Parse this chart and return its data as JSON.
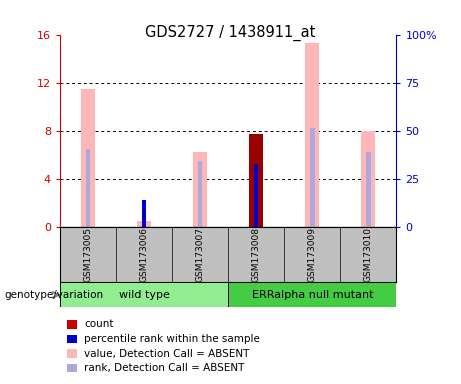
{
  "title": "GDS2727 / 1438911_at",
  "samples": [
    "GSM173005",
    "GSM173006",
    "GSM173007",
    "GSM173008",
    "GSM173009",
    "GSM173010"
  ],
  "pink_values": [
    11.5,
    0.5,
    6.2,
    0.0,
    15.3,
    8.0
  ],
  "blue_rank_values": [
    6.5,
    0.0,
    5.5,
    0.0,
    8.2,
    6.2
  ],
  "dark_red_values": [
    0.0,
    0.0,
    0.0,
    7.7,
    0.0,
    0.0
  ],
  "blue_dot_values": [
    0.0,
    2.2,
    0.0,
    5.2,
    0.0,
    0.0
  ],
  "ylim_left": [
    0,
    16
  ],
  "ylim_right": [
    0,
    100
  ],
  "yticks_left": [
    0,
    4,
    8,
    12,
    16
  ],
  "ytick_labels_left": [
    "0",
    "4",
    "8",
    "12",
    "16"
  ],
  "yticks_right": [
    0,
    25,
    50,
    75,
    100
  ],
  "ytick_labels_right": [
    "0",
    "25",
    "50",
    "75",
    "100%"
  ],
  "left_tick_color": "#CC0000",
  "right_tick_color": "#0000CC",
  "pink_bar_color": "#FFB6B6",
  "blue_rank_color": "#AAAADD",
  "dark_red_color": "#990000",
  "blue_dot_color": "#0000CC",
  "legend_items": [
    {
      "label": "count",
      "color": "#CC0000"
    },
    {
      "label": "percentile rank within the sample",
      "color": "#0000CC"
    },
    {
      "label": "value, Detection Call = ABSENT",
      "color": "#FFB6B6"
    },
    {
      "label": "rank, Detection Call = ABSENT",
      "color": "#AAAADD"
    }
  ],
  "group_bg": "#C0C0C0",
  "wt_color": "#90EE90",
  "err_color": "#44CC44",
  "pink_bar_width": 0.25,
  "thin_bar_width": 0.08
}
